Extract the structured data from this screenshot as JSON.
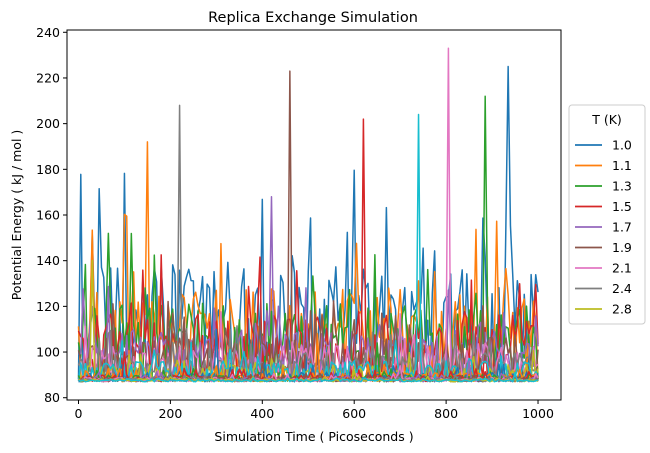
{
  "chart_data": {
    "type": "line",
    "title": "Replica Exchange Simulation",
    "xlabel": "Simulation Time ( Picoseconds )",
    "ylabel": "Potential Energy ( kJ / mol )",
    "xlim": [
      -25,
      1050
    ],
    "ylim": [
      79,
      241
    ],
    "xticks": [
      0,
      200,
      400,
      600,
      800,
      1000
    ],
    "yticks": [
      80,
      100,
      120,
      140,
      160,
      180,
      200,
      220,
      240
    ],
    "grid": false,
    "x_range": [
      0,
      1000
    ],
    "n_points": 201,
    "legend": {
      "title": "T (K)",
      "placement": "outside-right",
      "entries": [
        "1.0",
        "1.1",
        "1.3",
        "1.5",
        "1.7",
        "1.9",
        "2.1",
        "2.4",
        "2.8"
      ]
    },
    "series": [
      {
        "name": "1.0",
        "color": "#1f77b4",
        "floor": 87,
        "typical": 118,
        "spread": 28,
        "peak": 225,
        "peak_x": 935
      },
      {
        "name": "1.1",
        "color": "#ff7f0e",
        "floor": 87,
        "typical": 112,
        "spread": 22,
        "peak": 192,
        "peak_x": 150
      },
      {
        "name": "1.3",
        "color": "#2ca02c",
        "floor": 87,
        "typical": 108,
        "spread": 20,
        "peak": 212,
        "peak_x": 885
      },
      {
        "name": "1.5",
        "color": "#d62728",
        "floor": 87,
        "typical": 104,
        "spread": 18,
        "peak": 202,
        "peak_x": 620
      },
      {
        "name": "1.7",
        "color": "#9467bd",
        "floor": 87,
        "typical": 100,
        "spread": 14,
        "peak": 168,
        "peak_x": 420
      },
      {
        "name": "1.9",
        "color": "#8c564b",
        "floor": 87,
        "typical": 98,
        "spread": 12,
        "peak": 223,
        "peak_x": 460
      },
      {
        "name": "2.1",
        "color": "#e377c2",
        "floor": 87,
        "typical": 96,
        "spread": 10,
        "peak": 233,
        "peak_x": 805
      },
      {
        "name": "2.4",
        "color": "#7f7f7f",
        "floor": 87,
        "typical": 94,
        "spread": 8,
        "peak": 208,
        "peak_x": 218
      },
      {
        "name": "2.8",
        "color": "#bcbd22",
        "floor": 87,
        "typical": 91,
        "spread": 5,
        "peak": 140,
        "peak_x": 30
      },
      {
        "name": "",
        "color": "#17becf",
        "floor": 87,
        "typical": 92,
        "spread": 6,
        "peak": 204,
        "peak_x": 740
      },
      {
        "name": "",
        "color": "#1f77b4",
        "floor": 87,
        "typical": 89,
        "spread": 3,
        "peak": 110,
        "peak_x": 300
      },
      {
        "name": "",
        "color": "#ff7f0e",
        "floor": 87,
        "typical": 89,
        "spread": 3,
        "peak": 108,
        "peak_x": 520
      },
      {
        "name": "",
        "color": "#2ca02c",
        "floor": 87,
        "typical": 88.5,
        "spread": 2,
        "peak": 104,
        "peak_x": 650
      },
      {
        "name": "",
        "color": "#d62728",
        "floor": 87,
        "typical": 88.5,
        "spread": 2,
        "peak": 100,
        "peak_x": 100
      },
      {
        "name": "",
        "color": "#9467bd",
        "floor": 87,
        "typical": 88,
        "spread": 1.5,
        "peak": 96,
        "peak_x": 850
      },
      {
        "name": "",
        "color": "#8c564b",
        "floor": 87,
        "typical": 88,
        "spread": 1.5,
        "peak": 95,
        "peak_x": 400
      },
      {
        "name": "",
        "color": "#e377c2",
        "floor": 87,
        "typical": 88,
        "spread": 1.2,
        "peak": 94,
        "peak_x": 700
      },
      {
        "name": "",
        "color": "#7f7f7f",
        "floor": 87,
        "typical": 87.8,
        "spread": 1,
        "peak": 93,
        "peak_x": 200
      },
      {
        "name": "",
        "color": "#bcbd22",
        "floor": 87,
        "typical": 87.6,
        "spread": 0.8,
        "peak": 92,
        "peak_x": 600
      },
      {
        "name": "",
        "color": "#17becf",
        "floor": 87,
        "typical": 87.4,
        "spread": 0.6,
        "peak": 91,
        "peak_x": 950
      }
    ]
  }
}
